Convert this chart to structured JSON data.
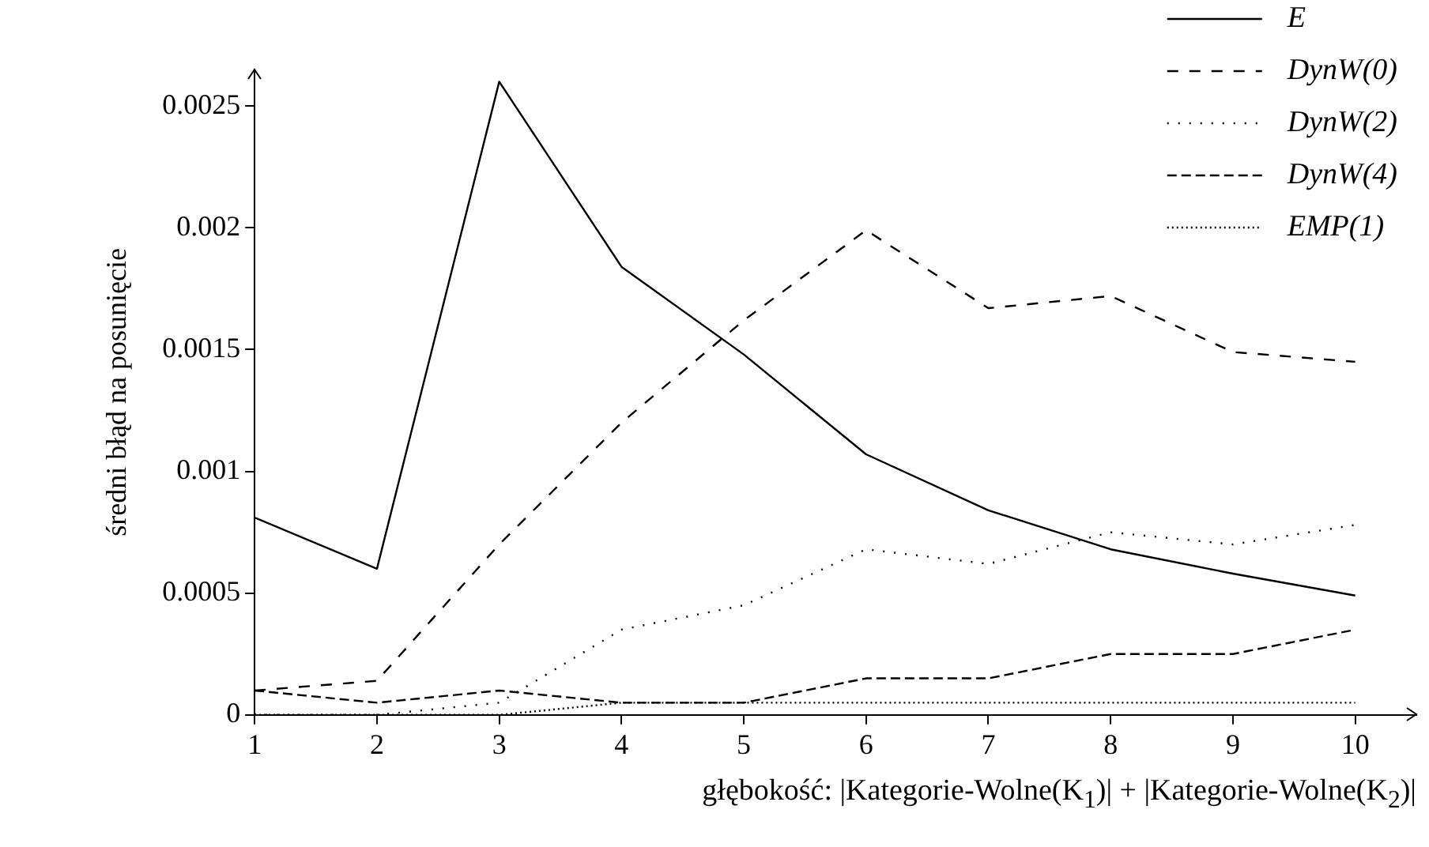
{
  "chart_data": {
    "type": "line",
    "xlabel": "głębokość: |Kategorie-Wolne(K$_{1}$)| + |Kategorie-Wolne(K$_{2}$)|",
    "ylabel": "średni błąd na posunięcie",
    "x": [
      1,
      2,
      3,
      4,
      5,
      6,
      7,
      8,
      9,
      10
    ],
    "series": [
      {
        "name": "E",
        "color": "#000000",
        "line_style": "solid",
        "values": [
          0.00081,
          0.0006,
          0.0026,
          0.00184,
          0.00148,
          0.00107,
          0.00084,
          0.00068,
          0.00058,
          0.00049
        ]
      },
      {
        "name": "DynW(0)",
        "color": "#000000",
        "line_style": "dashed",
        "values": [
          0.0001,
          0.00014,
          0.0007,
          0.0012,
          0.00162,
          0.00199,
          0.00167,
          0.00172,
          0.00149,
          0.00145
        ]
      },
      {
        "name": "DynW(2)",
        "color": "#000000",
        "line_style": "dotted",
        "values": [
          0,
          0,
          5e-05,
          0.00035,
          0.00045,
          0.00068,
          0.00062,
          0.00075,
          0.0007,
          0.00078
        ]
      },
      {
        "name": "DynW(4)",
        "color": "#000000",
        "line_style": "dashed",
        "values": [
          0.0001,
          5e-05,
          0.0001,
          5e-05,
          5e-05,
          0.00015,
          0.00015,
          0.00025,
          0.00025,
          0.00035
        ]
      },
      {
        "name": "EMP(1)",
        "color": "#000000",
        "line_style": "dotted",
        "values": [
          0,
          0,
          0,
          5e-05,
          5e-05,
          5e-05,
          5e-05,
          5e-05,
          5e-05,
          5e-05
        ]
      }
    ],
    "xlim": [
      1,
      10.5
    ],
    "xticks": [
      1,
      2,
      3,
      4,
      5,
      6,
      7,
      8,
      9,
      10
    ],
    "ylim": [
      0,
      0.00265
    ],
    "yticks": [
      0,
      0.0005,
      0.001,
      0.0015,
      0.002,
      0.0025
    ],
    "grid": false,
    "legend": "top right",
    "marker": "none"
  }
}
